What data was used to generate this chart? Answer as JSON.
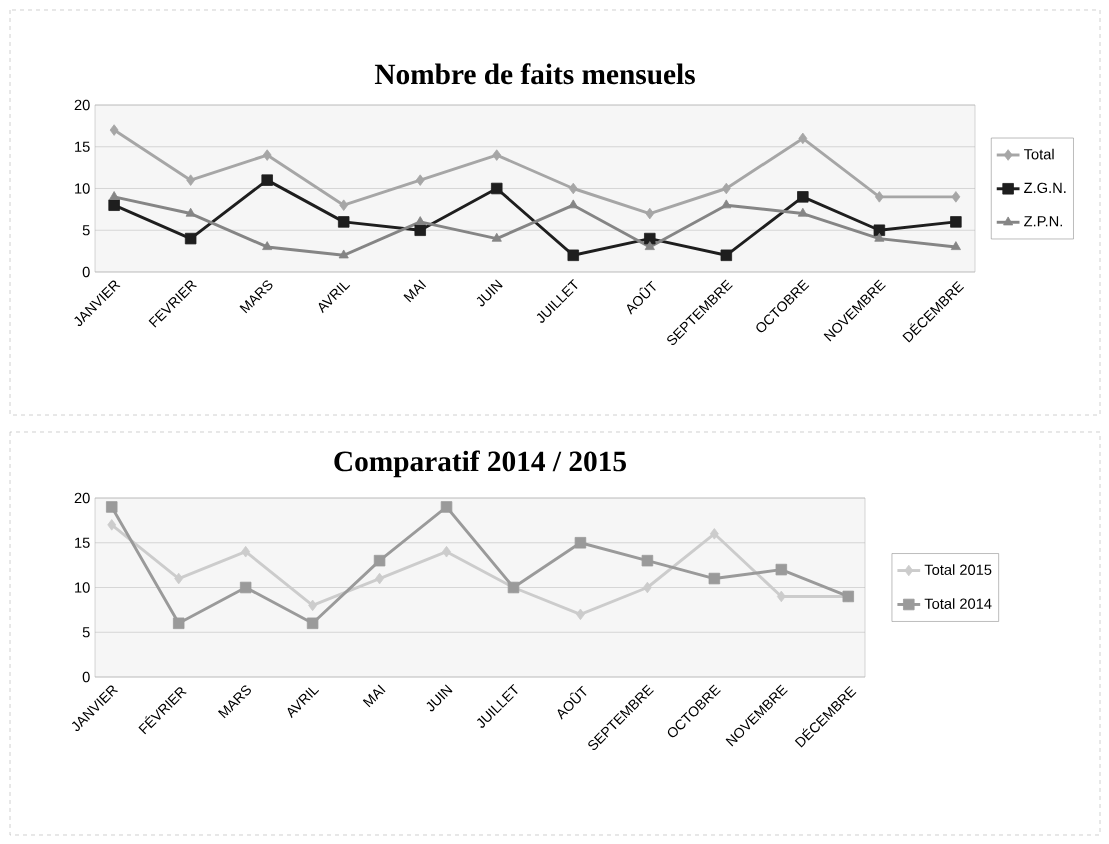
{
  "chart_data": [
    {
      "type": "line",
      "title": "Nombre de faits mensuels",
      "categories": [
        "JANVIER",
        "FEVRIER",
        "MARS",
        "AVRIL",
        "MAI",
        "JUIN",
        "JUILLET",
        "AOÛT",
        "SEPTEMBRE",
        "OCTOBRE",
        "NOVEMBRE",
        "DÉCEMBRE"
      ],
      "series": [
        {
          "name": "Total",
          "color": "#a6a6a6",
          "marker": "diamond",
          "values": [
            17,
            11,
            14,
            8,
            11,
            14,
            10,
            7,
            10,
            16,
            9,
            9
          ]
        },
        {
          "name": "Z.G.N.",
          "color": "#1e1e1e",
          "marker": "square",
          "values": [
            8,
            4,
            11,
            6,
            5,
            10,
            2,
            4,
            2,
            9,
            5,
            6
          ]
        },
        {
          "name": "Z.P.N.",
          "color": "#858585",
          "marker": "triangle",
          "values": [
            9,
            7,
            3,
            2,
            6,
            4,
            8,
            3,
            8,
            7,
            4,
            3
          ]
        }
      ],
      "ylim": [
        0,
        20
      ],
      "yticks": [
        0,
        5,
        10,
        15,
        20
      ],
      "grid": "y",
      "legend": "right",
      "line_style": "solid"
    },
    {
      "type": "line",
      "title": "Comparatif  2014 / 2015",
      "categories": [
        "JANVIER",
        "FÉVRIER",
        "MARS",
        "AVRIL",
        "MAI",
        "JUIN",
        "JUILLET",
        "AOÛT",
        "SEPTEMBRE",
        "OCTOBRE",
        "NOVEMBRE",
        "DÉCEMBRE"
      ],
      "series": [
        {
          "name": "Total 2015",
          "color": "#cccccc",
          "marker": "diamond",
          "values": [
            17,
            11,
            14,
            8,
            11,
            14,
            10,
            7,
            10,
            16,
            9,
            9
          ]
        },
        {
          "name": "Total 2014",
          "color": "#9a9a9a",
          "marker": "square",
          "values": [
            19,
            6,
            10,
            6,
            13,
            19,
            10,
            15,
            13,
            11,
            12,
            9
          ]
        }
      ],
      "ylim": [
        0,
        20
      ],
      "yticks": [
        0,
        5,
        10,
        15,
        20
      ],
      "grid": "y",
      "legend": "right",
      "line_style": "solid"
    }
  ]
}
